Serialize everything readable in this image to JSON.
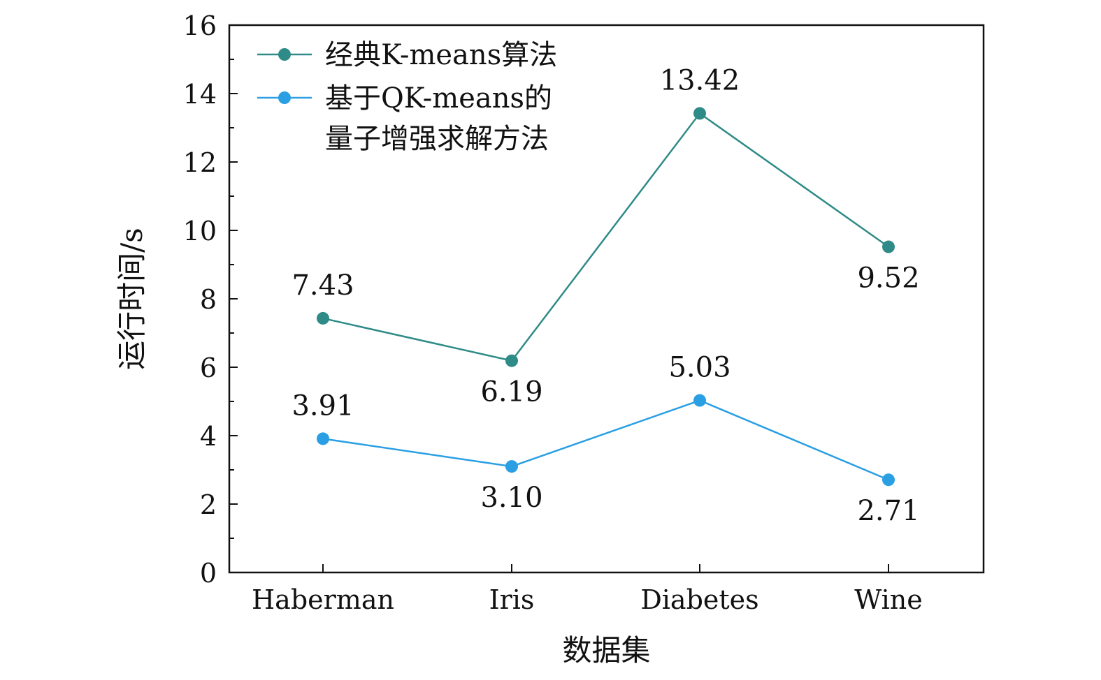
{
  "chart_data": {
    "type": "line",
    "categories": [
      "Haberman",
      "Iris",
      "Diabetes",
      "Wine"
    ],
    "series": [
      {
        "name": "经典K-means算法",
        "color": "#2e8b87",
        "values": [
          7.43,
          6.19,
          13.42,
          9.52
        ],
        "labels": [
          "7.43",
          "6.19",
          "13.42",
          "9.52"
        ]
      },
      {
        "name": "基于QK-means的量子增强求解方法",
        "name_lines": [
          "基于QK-means的",
          "量子增强求解方法"
        ],
        "color": "#2a9fe3",
        "values": [
          3.91,
          3.1,
          5.03,
          2.71
        ],
        "labels": [
          "3.91",
          "3.10",
          "5.03",
          "2.71"
        ]
      }
    ],
    "xlabel": "数据集",
    "ylabel": "运行时间/s",
    "ylim": [
      0,
      16
    ],
    "yticks": [
      0,
      2,
      4,
      6,
      8,
      10,
      12,
      14,
      16
    ],
    "yticks_labels": [
      "0",
      "2",
      "4",
      "6",
      "8",
      "10",
      "12",
      "14",
      "16"
    ],
    "grid": false,
    "legend_position": "top-left"
  }
}
